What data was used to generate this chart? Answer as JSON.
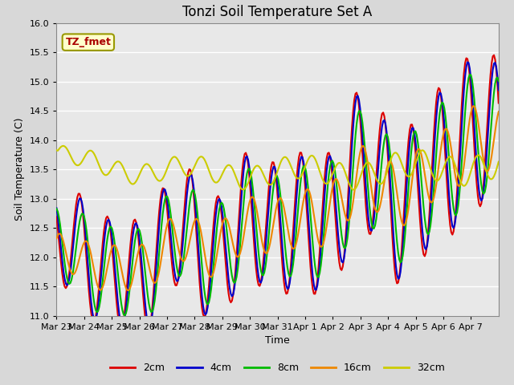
{
  "title": "Tonzi Soil Temperature Set A",
  "xlabel": "Time",
  "ylabel": "Soil Temperature (C)",
  "ylim": [
    11.0,
    16.0
  ],
  "yticks": [
    11.0,
    11.5,
    12.0,
    12.5,
    13.0,
    13.5,
    14.0,
    14.5,
    15.0,
    15.5,
    16.0
  ],
  "x_tick_labels": [
    "Mar 23",
    "Mar 24",
    "Mar 25",
    "Mar 26",
    "Mar 27",
    "Mar 28",
    "Mar 29",
    "Mar 30",
    "Mar 31",
    "Apr 1",
    "Apr 2",
    "Apr 3",
    "Apr 4",
    "Apr 5",
    "Apr 6",
    "Apr 7"
  ],
  "n_days": 16,
  "series_colors": {
    "2cm": "#dd0000",
    "4cm": "#0000cc",
    "8cm": "#00bb00",
    "16cm": "#ee8800",
    "32cm": "#cccc00"
  },
  "linewidth": 1.5,
  "annotation_text": "TZ_fmet",
  "fig_bg": "#d8d8d8",
  "plot_bg": "#e8e8e8",
  "grid_color": "white",
  "title_fontsize": 12,
  "axis_label_fontsize": 9,
  "tick_fontsize": 8,
  "legend_fontsize": 9,
  "annotation_text_color": "#aa0000",
  "annotation_box_color": "#ffffcc",
  "annotation_edge_color": "#999900"
}
